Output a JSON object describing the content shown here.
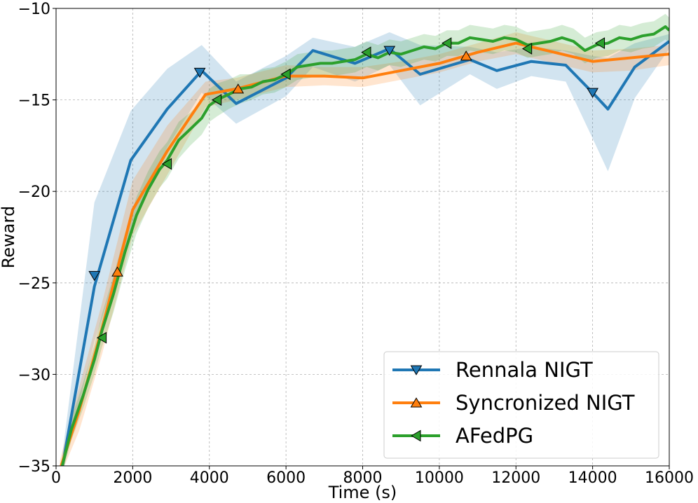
{
  "chart_data": {
    "type": "line",
    "title": "",
    "xlabel": "Time (s)",
    "ylabel": "Reward",
    "xlim": [
      0,
      16000
    ],
    "ylim": [
      -35,
      -10
    ],
    "xticks": [
      0,
      2000,
      4000,
      6000,
      8000,
      10000,
      12000,
      14000,
      16000
    ],
    "xtick_labels": [
      "0",
      "2000",
      "4000",
      "6000",
      "8000",
      "10000",
      "12000",
      "14000",
      "16000"
    ],
    "yticks": [
      -35,
      -30,
      -25,
      -20,
      -15,
      -10
    ],
    "ytick_labels": [
      "−35",
      "−30",
      "−25",
      "−20",
      "−15",
      "−10"
    ],
    "grid": true,
    "legend_position": "bottom-right",
    "series": [
      {
        "name": "Rennala NIGT",
        "color": "#1f77b4",
        "marker": "triangle-down",
        "x": [
          150,
          1000,
          1950,
          2900,
          3800,
          4700,
          6000,
          6700,
          7800,
          8700,
          9500,
          10800,
          11500,
          12400,
          13300,
          14000,
          14400,
          15100,
          16000
        ],
        "y": [
          -35.2,
          -25.2,
          -18.3,
          -15.5,
          -13.4,
          -15.2,
          -13.8,
          -12.3,
          -13.0,
          -12.2,
          -13.6,
          -12.8,
          -13.4,
          -12.9,
          -13.1,
          -14.6,
          -15.5,
          -13.2,
          -11.8
        ],
        "band_lower": [
          -35.5,
          -28.2,
          -22.1,
          -17.6,
          -14.6,
          -16.3,
          -14.8,
          -13.2,
          -14.0,
          -13.1,
          -15.3,
          -13.6,
          -14.4,
          -13.7,
          -14.0,
          -17.1,
          -18.9,
          -14.9,
          -12.2
        ],
        "band_upper": [
          -34.6,
          -20.6,
          -15.6,
          -13.3,
          -12.0,
          -14.0,
          -12.6,
          -11.6,
          -12.1,
          -11.3,
          -12.0,
          -12.1,
          -12.4,
          -12.1,
          -12.3,
          -12.6,
          -12.7,
          -11.9,
          -11.4
        ],
        "marker_x": [
          1000,
          3750,
          8700,
          14000
        ],
        "marker_y": [
          -24.6,
          -13.5,
          -12.3,
          -14.6
        ]
      },
      {
        "name": "Syncronized NIGT",
        "color": "#ff7f0e",
        "marker": "triangle-up",
        "x": [
          100,
          600,
          1200,
          2000,
          2900,
          3900,
          4700,
          6000,
          7000,
          8000,
          9000,
          10000,
          11000,
          12000,
          12800,
          14000,
          15000,
          16000
        ],
        "y": [
          -35.2,
          -32.0,
          -27.5,
          -21.0,
          -17.8,
          -14.7,
          -14.4,
          -13.7,
          -13.7,
          -13.8,
          -13.4,
          -13.0,
          -12.4,
          -11.9,
          -12.3,
          -12.9,
          -12.7,
          -12.5
        ],
        "band_lower": [
          -35.6,
          -33.1,
          -28.9,
          -22.4,
          -19.1,
          -15.4,
          -15.0,
          -14.3,
          -14.2,
          -14.3,
          -13.9,
          -13.5,
          -12.9,
          -12.5,
          -12.9,
          -13.5,
          -13.4,
          -13.1
        ],
        "band_upper": [
          -34.7,
          -30.7,
          -26.1,
          -19.4,
          -16.4,
          -14.0,
          -13.8,
          -13.1,
          -13.2,
          -13.2,
          -12.9,
          -12.5,
          -11.9,
          -11.3,
          -11.7,
          -12.3,
          -12.2,
          -12.0
        ],
        "marker_x": [
          1600,
          4750,
          10700
        ],
        "marker_y": [
          -24.4,
          -14.4,
          -12.6
        ]
      },
      {
        "name": "AFedPG",
        "color": "#2ca02c",
        "marker": "triangle-left",
        "x": [
          100,
          400,
          700,
          1000,
          1200,
          1500,
          1800,
          2100,
          2400,
          2700,
          2900,
          3200,
          3500,
          3800,
          4000,
          4200,
          4500,
          4800,
          5100,
          5400,
          5700,
          6000,
          6300,
          6600,
          6900,
          7200,
          7500,
          7800,
          8100,
          8400,
          8700,
          9000,
          9300,
          9600,
          9900,
          10200,
          10500,
          10800,
          11100,
          11400,
          11700,
          12000,
          12300,
          12600,
          12900,
          13200,
          13500,
          13800,
          14100,
          14400,
          14700,
          15000,
          15300,
          15600,
          15900,
          16000
        ],
        "y": [
          -35.5,
          -33.0,
          -31.2,
          -29.2,
          -27.6,
          -25.6,
          -23.3,
          -21.3,
          -19.9,
          -18.8,
          -18.3,
          -17.2,
          -16.6,
          -16.0,
          -15.3,
          -15.0,
          -14.7,
          -14.4,
          -14.3,
          -14.0,
          -13.9,
          -13.6,
          -13.2,
          -13.1,
          -13.0,
          -13.0,
          -12.9,
          -12.8,
          -12.5,
          -12.7,
          -12.4,
          -12.5,
          -12.3,
          -12.1,
          -12.2,
          -11.9,
          -11.9,
          -11.6,
          -11.7,
          -11.8,
          -11.6,
          -11.7,
          -12.0,
          -11.9,
          -11.8,
          -11.6,
          -11.8,
          -12.3,
          -12.0,
          -11.9,
          -11.6,
          -11.7,
          -11.5,
          -11.4,
          -11.0,
          -11.2
        ],
        "band_lower": [
          -35.9,
          -33.6,
          -31.9,
          -30.0,
          -28.5,
          -26.6,
          -24.3,
          -22.3,
          -20.9,
          -19.8,
          -19.3,
          -18.2,
          -17.5,
          -16.9,
          -16.2,
          -15.9,
          -15.5,
          -15.2,
          -15.0,
          -14.7,
          -14.6,
          -14.3,
          -13.9,
          -13.8,
          -13.7,
          -13.7,
          -13.6,
          -13.5,
          -13.2,
          -13.4,
          -13.1,
          -13.2,
          -13.0,
          -12.8,
          -12.9,
          -12.6,
          -12.6,
          -12.3,
          -12.4,
          -12.5,
          -12.3,
          -12.4,
          -12.7,
          -12.6,
          -12.5,
          -12.3,
          -12.5,
          -13.0,
          -12.7,
          -12.6,
          -12.3,
          -12.4,
          -12.2,
          -12.1,
          -11.7,
          -11.9
        ],
        "band_upper": [
          -35.1,
          -32.4,
          -30.5,
          -28.4,
          -26.7,
          -24.6,
          -22.3,
          -20.3,
          -18.9,
          -17.8,
          -17.3,
          -16.2,
          -15.7,
          -15.1,
          -14.4,
          -14.1,
          -13.9,
          -13.6,
          -13.6,
          -13.3,
          -13.2,
          -12.9,
          -12.5,
          -12.4,
          -12.3,
          -12.3,
          -12.2,
          -12.1,
          -11.8,
          -12.0,
          -11.7,
          -11.8,
          -11.6,
          -11.4,
          -11.5,
          -11.2,
          -11.2,
          -10.9,
          -11.0,
          -11.1,
          -10.9,
          -11.0,
          -11.3,
          -11.2,
          -11.1,
          -10.9,
          -11.1,
          -11.6,
          -11.3,
          -11.2,
          -10.9,
          -11.0,
          -10.8,
          -10.7,
          -10.3,
          -10.5
        ],
        "marker_x": [
          1200,
          2900,
          4200,
          6000,
          8100,
          10200,
          12300,
          14200
        ],
        "marker_y": [
          -28.0,
          -18.5,
          -15.0,
          -13.6,
          -12.4,
          -11.9,
          -12.2,
          -11.9
        ]
      }
    ]
  }
}
